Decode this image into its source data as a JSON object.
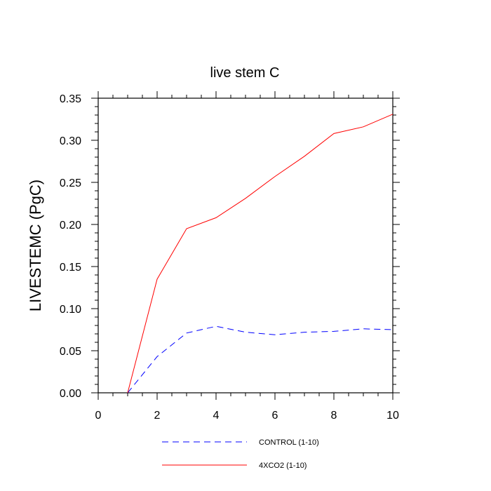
{
  "chart_data": {
    "type": "line",
    "title": "live stem C",
    "xlabel": "",
    "ylabel": "LIVESTEMC  (PgC)",
    "xlim": [
      0,
      10
    ],
    "ylim": [
      0,
      0.35
    ],
    "x_ticks": [
      "0",
      "2",
      "4",
      "6",
      "8",
      "10"
    ],
    "y_ticks": [
      "0.00",
      "0.05",
      "0.10",
      "0.15",
      "0.20",
      "0.25",
      "0.30",
      "0.35"
    ],
    "grid": false,
    "legend_position": "bottom",
    "series": [
      {
        "name": "CONTROL (1-10)",
        "color": "#0000ff",
        "style": "dashed",
        "x": [
          1,
          2,
          3,
          4,
          5,
          6,
          7,
          8,
          9,
          10
        ],
        "y": [
          0.0,
          0.043,
          0.071,
          0.079,
          0.072,
          0.069,
          0.072,
          0.073,
          0.076,
          0.075
        ]
      },
      {
        "name": "4XCO2 (1-10)",
        "color": "#ff0000",
        "style": "solid",
        "x": [
          1,
          2,
          3,
          4,
          5,
          6,
          7,
          8,
          9,
          10
        ],
        "y": [
          0.0,
          0.135,
          0.195,
          0.208,
          0.231,
          0.257,
          0.281,
          0.308,
          0.316,
          0.331
        ]
      }
    ]
  }
}
